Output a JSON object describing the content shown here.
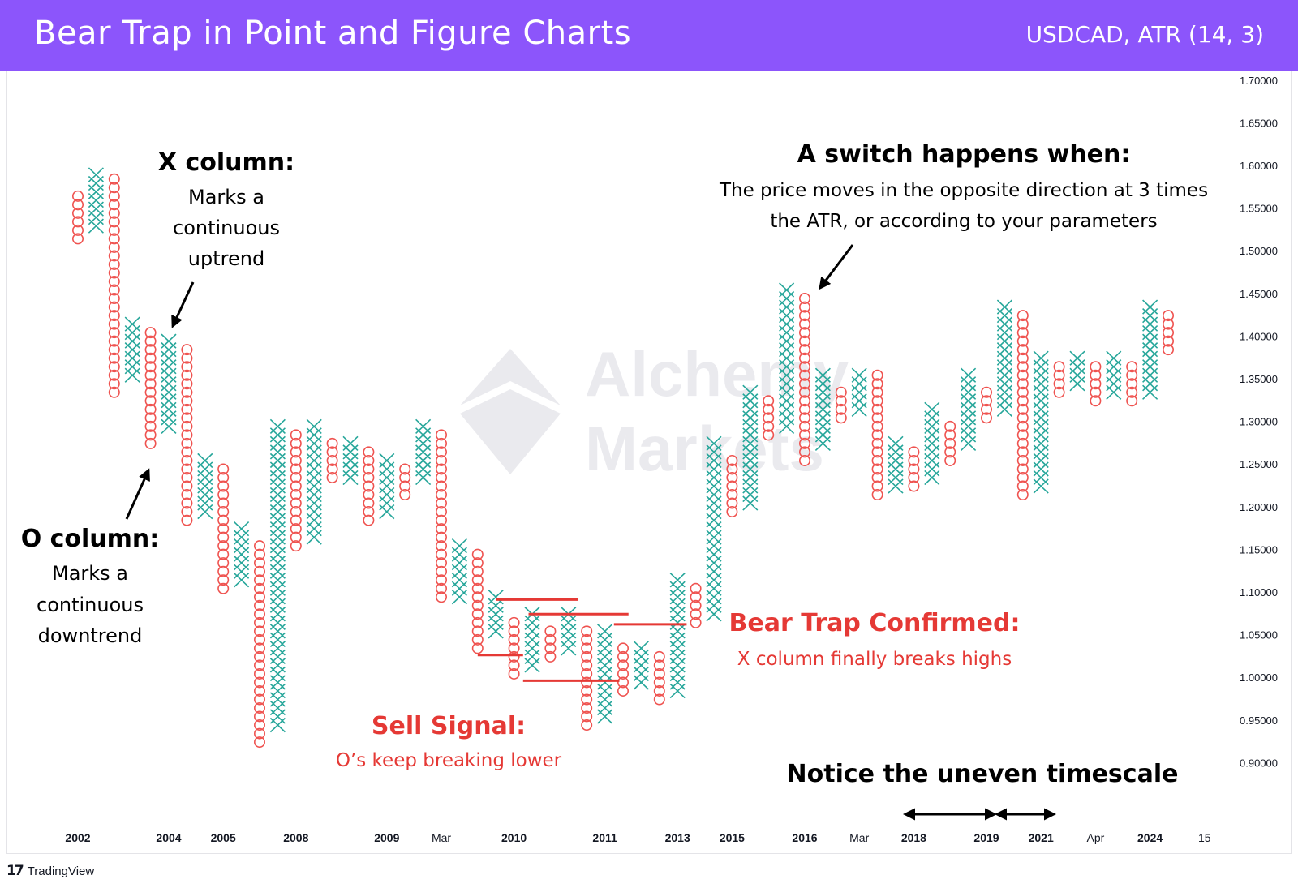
{
  "header": {
    "title": "Bear Trap in Point and Figure Charts",
    "symbol": "USDCAD, ATR (14, 3)"
  },
  "footer": {
    "brand": "TradingView",
    "logo": "tradingview-logo-icon"
  },
  "watermark": {
    "line1": "Alchemy",
    "line2": "Markets",
    "logo": "alchemy-markets-logo-icon"
  },
  "colors": {
    "x_column": "#26a69a",
    "o_column": "#ef5350",
    "annotation_red": "#e53935",
    "annotation_black": "#000000",
    "header_bg": "#8c55fb",
    "axis_text": "#131722"
  },
  "annotations": {
    "x_column_title": "X column:",
    "x_column_text": [
      "Marks a",
      "continuous",
      "uptrend"
    ],
    "o_column_title": "O column:",
    "o_column_text": [
      "Marks a",
      "continuous",
      "downtrend"
    ],
    "switch_title": "A switch happens when:",
    "switch_text": [
      "The price moves in the opposite direction at 3 times",
      "the ATR, or according to your parameters"
    ],
    "bear_trap_title": "Bear Trap Confirmed:",
    "bear_trap_text": "X column finally breaks highs",
    "sell_signal_title": "Sell Signal:",
    "sell_signal_text": "O’s keep breaking lower",
    "timescale_note": "Notice the uneven timescale"
  },
  "chart_data": {
    "type": "point_and_figure",
    "symbol": "USDCAD",
    "box_reversal": "ATR (14, 3)",
    "ylim": [
      0.88,
      1.72
    ],
    "y_ticks": [
      "1.70000",
      "1.65000",
      "1.60000",
      "1.55000",
      "1.50000",
      "1.45000",
      "1.40000",
      "1.35000",
      "1.30000",
      "1.25000",
      "1.20000",
      "1.15000",
      "1.10000",
      "1.05000",
      "1.00000",
      "0.95000",
      "0.90000"
    ],
    "x_ticks": [
      {
        "label": "2002",
        "col": 0
      },
      {
        "label": "2004",
        "col": 5
      },
      {
        "label": "2005",
        "col": 8
      },
      {
        "label": "2008",
        "col": 12
      },
      {
        "label": "2009",
        "col": 17
      },
      {
        "label": "Mar",
        "col": 20
      },
      {
        "label": "2010",
        "col": 24
      },
      {
        "label": "2011",
        "col": 29
      },
      {
        "label": "2013",
        "col": 33
      },
      {
        "label": "2015",
        "col": 36
      },
      {
        "label": "2016",
        "col": 40
      },
      {
        "label": "Mar",
        "col": 43
      },
      {
        "label": "2018",
        "col": 46
      },
      {
        "label": "2019",
        "col": 50
      },
      {
        "label": "2021",
        "col": 53
      },
      {
        "label": "Apr",
        "col": 56
      },
      {
        "label": "2024",
        "col": 59
      },
      {
        "label": "15",
        "col": 62
      }
    ],
    "columns": [
      {
        "t": "O",
        "hi": 1.565,
        "lo": 1.515
      },
      {
        "t": "X",
        "hi": 1.595,
        "lo": 1.53
      },
      {
        "t": "O",
        "hi": 1.58,
        "lo": 1.335
      },
      {
        "t": "X",
        "hi": 1.415,
        "lo": 1.355
      },
      {
        "t": "O",
        "hi": 1.4,
        "lo": 1.275
      },
      {
        "t": "X",
        "hi": 1.4,
        "lo": 1.295
      },
      {
        "t": "O",
        "hi": 1.385,
        "lo": 1.185
      },
      {
        "t": "X",
        "hi": 1.255,
        "lo": 1.195
      },
      {
        "t": "O",
        "hi": 1.245,
        "lo": 1.105
      },
      {
        "t": "X",
        "hi": 1.175,
        "lo": 1.115
      },
      {
        "t": "O",
        "hi": 1.155,
        "lo": 0.925
      },
      {
        "t": "X",
        "hi": 1.295,
        "lo": 0.945
      },
      {
        "t": "O",
        "hi": 1.28,
        "lo": 1.155
      },
      {
        "t": "X",
        "hi": 1.295,
        "lo": 1.165
      },
      {
        "t": "O",
        "hi": 1.28,
        "lo": 1.235
      },
      {
        "t": "X",
        "hi": 1.275,
        "lo": 1.235
      },
      {
        "t": "O",
        "hi": 1.265,
        "lo": 1.185
      },
      {
        "t": "X",
        "hi": 1.255,
        "lo": 1.195
      },
      {
        "t": "O",
        "hi": 1.245,
        "lo": 1.215
      },
      {
        "t": "X",
        "hi": 1.295,
        "lo": 1.235
      },
      {
        "t": "O",
        "hi": 1.28,
        "lo": 1.095
      },
      {
        "t": "X",
        "hi": 1.155,
        "lo": 1.095
      },
      {
        "t": "O",
        "hi": 1.145,
        "lo": 1.035
      },
      {
        "t": "X",
        "hi": 1.095,
        "lo": 1.055
      },
      {
        "t": "O",
        "hi": 1.065,
        "lo": 1.005
      },
      {
        "t": "X",
        "hi": 1.075,
        "lo": 1.015
      },
      {
        "t": "O",
        "hi": 1.055,
        "lo": 1.025
      },
      {
        "t": "X",
        "hi": 1.075,
        "lo": 1.035
      },
      {
        "t": "O",
        "hi": 1.055,
        "lo": 0.945
      },
      {
        "t": "X",
        "hi": 1.055,
        "lo": 0.955
      },
      {
        "t": "O",
        "hi": 1.035,
        "lo": 0.985
      },
      {
        "t": "X",
        "hi": 1.035,
        "lo": 0.995
      },
      {
        "t": "O",
        "hi": 1.02,
        "lo": 0.975
      },
      {
        "t": "X",
        "hi": 1.115,
        "lo": 0.985
      },
      {
        "t": "O",
        "hi": 1.1,
        "lo": 1.065
      },
      {
        "t": "X",
        "hi": 1.275,
        "lo": 1.075
      },
      {
        "t": "O",
        "hi": 1.26,
        "lo": 1.195
      },
      {
        "t": "X",
        "hi": 1.335,
        "lo": 1.205
      },
      {
        "t": "O",
        "hi": 1.32,
        "lo": 1.285
      },
      {
        "t": "X",
        "hi": 1.455,
        "lo": 1.295
      },
      {
        "t": "O",
        "hi": 1.445,
        "lo": 1.255
      },
      {
        "t": "X",
        "hi": 1.355,
        "lo": 1.275
      },
      {
        "t": "O",
        "hi": 1.335,
        "lo": 1.305
      },
      {
        "t": "X",
        "hi": 1.355,
        "lo": 1.315
      },
      {
        "t": "O",
        "hi": 1.355,
        "lo": 1.215
      },
      {
        "t": "X",
        "hi": 1.275,
        "lo": 1.225
      },
      {
        "t": "O",
        "hi": 1.265,
        "lo": 1.225
      },
      {
        "t": "X",
        "hi": 1.315,
        "lo": 1.235
      },
      {
        "t": "O",
        "hi": 1.295,
        "lo": 1.255
      },
      {
        "t": "X",
        "hi": 1.355,
        "lo": 1.275
      },
      {
        "t": "O",
        "hi": 1.335,
        "lo": 1.305
      },
      {
        "t": "X",
        "hi": 1.435,
        "lo": 1.315
      },
      {
        "t": "O",
        "hi": 1.425,
        "lo": 1.215
      },
      {
        "t": "X",
        "hi": 1.375,
        "lo": 1.225
      },
      {
        "t": "O",
        "hi": 1.365,
        "lo": 1.335
      },
      {
        "t": "X",
        "hi": 1.375,
        "lo": 1.345
      },
      {
        "t": "O",
        "hi": 1.365,
        "lo": 1.325
      },
      {
        "t": "X",
        "hi": 1.375,
        "lo": 1.335
      },
      {
        "t": "O",
        "hi": 1.365,
        "lo": 1.325
      },
      {
        "t": "X",
        "hi": 1.435,
        "lo": 1.335
      },
      {
        "t": "O",
        "hi": 1.425,
        "lo": 1.385
      }
    ],
    "signal_lines": [
      {
        "y": 1.092,
        "from_col": 23,
        "to_col": 27.5
      },
      {
        "y": 1.075,
        "from_col": 24.8,
        "to_col": 30.3
      },
      {
        "y": 1.063,
        "from_col": 29.5,
        "to_col": 33.5
      },
      {
        "y": 1.027,
        "from_col": 22,
        "to_col": 24.5
      },
      {
        "y": 0.997,
        "from_col": 24.5,
        "to_col": 29.8
      }
    ]
  }
}
